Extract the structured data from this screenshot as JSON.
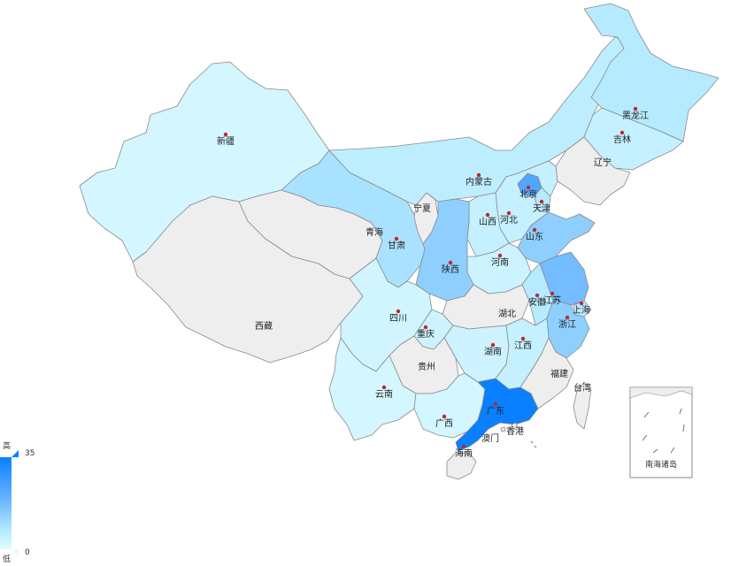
{
  "map": {
    "colors": {
      "no_data": "#eeeeee",
      "low": "#e2fbff",
      "high": "#0a7fff",
      "border": "#8a8a8a",
      "marker": "#c0262c"
    },
    "visual_map": {
      "min": 0,
      "max": 35,
      "high_label": "高",
      "low_label": "低",
      "max_label": "35",
      "min_label": "0"
    },
    "inset_label": "南海诸岛",
    "regions": [
      {
        "name": "新疆",
        "level": 0.1
      },
      {
        "name": "西藏",
        "level": null
      },
      {
        "name": "青海",
        "level": null
      },
      {
        "name": "甘肃",
        "level": 0.35
      },
      {
        "name": "宁夏",
        "level": null
      },
      {
        "name": "内蒙古",
        "level": 0.25
      },
      {
        "name": "黑龙江",
        "level": 0.3
      },
      {
        "name": "吉林",
        "level": 0.2
      },
      {
        "name": "辽宁",
        "level": null
      },
      {
        "name": "北京",
        "level": 0.7
      },
      {
        "name": "天津",
        "level": 0.3
      },
      {
        "name": "河北",
        "level": 0.2
      },
      {
        "name": "山西",
        "level": 0.2
      },
      {
        "name": "山东",
        "level": 0.45
      },
      {
        "name": "河南",
        "level": 0.15
      },
      {
        "name": "陕西",
        "level": 0.45
      },
      {
        "name": "四川",
        "level": 0.12
      },
      {
        "name": "重庆",
        "level": 0.15
      },
      {
        "name": "湖北",
        "level": null
      },
      {
        "name": "安徽",
        "level": 0.3
      },
      {
        "name": "江苏",
        "level": 0.55
      },
      {
        "name": "上海",
        "level": 0.3
      },
      {
        "name": "浙江",
        "level": 0.45
      },
      {
        "name": "湖南",
        "level": 0.15
      },
      {
        "name": "江西",
        "level": 0.2
      },
      {
        "name": "贵州",
        "level": null
      },
      {
        "name": "云南",
        "level": 0.1
      },
      {
        "name": "广西",
        "level": 0.1
      },
      {
        "name": "广东",
        "level": 1.0
      },
      {
        "name": "福建",
        "level": null
      },
      {
        "name": "台湾",
        "level": null
      },
      {
        "name": "海南",
        "level": null
      },
      {
        "name": "香港",
        "level": null
      },
      {
        "name": "澳门",
        "level": null
      }
    ]
  }
}
